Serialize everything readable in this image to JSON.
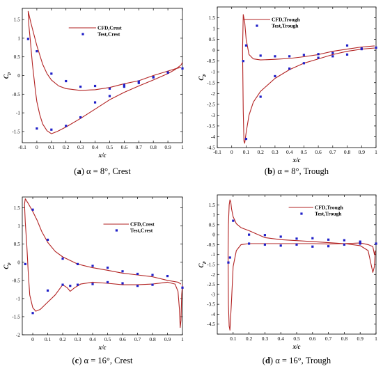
{
  "colors": {
    "cfd": "#b22222",
    "test": "#2020c8",
    "axis": "#000000"
  },
  "chart_data": [
    {
      "type": "line",
      "caption": {
        "letter": "a",
        "rest": " α = 8°, Crest"
      },
      "xlabel": "x/c",
      "ylabel": "C",
      "ylabel_sub": "p",
      "xlim": [
        -0.1,
        1.0
      ],
      "ylim": [
        -1.8,
        1.8
      ],
      "xticks": [
        -0.1,
        0,
        0.1,
        0.2,
        0.3,
        0.4,
        0.5,
        0.6,
        0.7,
        0.8,
        0.9,
        1
      ],
      "xtick_labels": [
        "-0.1",
        "0",
        "0.1",
        "0.2",
        "0.3",
        "0.4",
        "0.5",
        "0.6",
        "0.7",
        "0.8",
        "0.9",
        "1"
      ],
      "yticks": [
        -1.5,
        -1,
        -0.5,
        0,
        0.5,
        1,
        1.5
      ],
      "ytick_labels": [
        "-1.5",
        "-1",
        "-0.5",
        "0",
        "0.5",
        "1",
        "1.5"
      ],
      "legend": {
        "cfd_label": "CFD,Crest",
        "test_label": "Test,Crest",
        "position": "top-center"
      },
      "series": [
        {
          "name": "CFD,Crest",
          "kind": "line",
          "x": [
            0.99,
            0.95,
            0.9,
            0.8,
            0.7,
            0.6,
            0.5,
            0.4,
            0.3,
            0.2,
            0.15,
            0.1,
            0.07,
            0.04,
            0.02,
            0.0,
            -0.02,
            -0.04,
            -0.055,
            -0.06,
            -0.055,
            -0.045,
            -0.03,
            -0.01,
            0.0,
            0.02,
            0.04,
            0.07,
            0.1,
            0.14,
            0.2,
            0.3,
            0.4,
            0.5,
            0.6,
            0.7,
            0.8,
            0.9,
            0.95,
            0.99,
            1.0
          ],
          "y": [
            0.22,
            0.18,
            0.12,
            0.0,
            -0.14,
            -0.22,
            -0.32,
            -0.38,
            -0.4,
            -0.35,
            -0.28,
            -0.12,
            0.05,
            0.3,
            0.55,
            0.8,
            1.1,
            1.4,
            1.65,
            1.72,
            1.35,
            0.95,
            0.3,
            -0.4,
            -0.7,
            -1.05,
            -1.3,
            -1.48,
            -1.56,
            -1.5,
            -1.38,
            -1.15,
            -0.9,
            -0.65,
            -0.45,
            -0.28,
            -0.12,
            0.05,
            0.16,
            0.28,
            0.35
          ]
        },
        {
          "name": "Test,Crest",
          "kind": "scatter",
          "x": [
            -0.06,
            0.0,
            0.1,
            0.2,
            0.3,
            0.4,
            0.5,
            0.6,
            0.7,
            0.8,
            0.9,
            1.0,
            0.0,
            0.1,
            0.2,
            0.3,
            0.4,
            0.5,
            0.6,
            0.7,
            0.8,
            0.9
          ],
          "y": [
            0.98,
            0.65,
            0.05,
            -0.15,
            -0.3,
            -0.28,
            -0.35,
            -0.25,
            -0.16,
            -0.05,
            0.08,
            0.19,
            -1.42,
            -1.45,
            -1.35,
            -1.12,
            -0.72,
            -0.55,
            -0.3,
            -0.2,
            -0.04,
            0.08
          ]
        }
      ]
    },
    {
      "type": "line",
      "caption": {
        "letter": "b",
        "rest": " α = 8°, Trough"
      },
      "xlabel": "x/c",
      "ylabel": "C",
      "ylabel_sub": "p",
      "xlim": [
        -0.1,
        1.0
      ],
      "ylim": [
        -4.5,
        2.0
      ],
      "xticks": [
        -0.1,
        0,
        0.1,
        0.2,
        0.3,
        0.4,
        0.5,
        0.6,
        0.7,
        0.8,
        0.9,
        1
      ],
      "xtick_labels": [
        "-0.1",
        "0",
        "0.1",
        "0.2",
        "0.3",
        "0.4",
        "0.5",
        "0.6",
        "0.7",
        "0.8",
        "0.9",
        "1"
      ],
      "yticks": [
        -4.5,
        -4,
        -3.5,
        -3,
        -2.5,
        -2,
        -1.5,
        -1,
        -0.5,
        0,
        0.5,
        1,
        1.5
      ],
      "ytick_labels": [
        "-4.5",
        "-4",
        "-3.5",
        "-3",
        "-2.5",
        "-2",
        "-1.5",
        "-1",
        "-0.5",
        "0",
        "0.5",
        "1",
        "1.5"
      ],
      "legend": {
        "cfd_label": "CFD,Trough",
        "test_label": "Test,Trough",
        "position": "top-right"
      },
      "series": [
        {
          "name": "CFD,Trough",
          "kind": "line",
          "x": [
            0.99,
            0.9,
            0.8,
            0.7,
            0.6,
            0.5,
            0.4,
            0.3,
            0.2,
            0.15,
            0.12,
            0.1,
            0.09,
            0.08,
            0.075,
            0.08,
            0.085,
            0.09,
            0.1,
            0.12,
            0.15,
            0.2,
            0.3,
            0.4,
            0.5,
            0.6,
            0.7,
            0.8,
            0.9,
            0.99
          ],
          "y": [
            0.2,
            0.15,
            0.05,
            -0.05,
            -0.2,
            -0.3,
            -0.38,
            -0.42,
            -0.45,
            -0.4,
            -0.2,
            0.5,
            1.3,
            1.65,
            0.0,
            -2.8,
            -4.2,
            -4.3,
            -3.8,
            -3.0,
            -2.4,
            -1.9,
            -1.3,
            -0.9,
            -0.6,
            -0.4,
            -0.2,
            -0.05,
            0.05,
            0.1
          ]
        },
        {
          "name": "Test,Trough",
          "kind": "scatter",
          "x": [
            0.08,
            0.1,
            0.2,
            0.3,
            0.4,
            0.5,
            0.6,
            0.7,
            0.8,
            0.9,
            1.0,
            0.1,
            0.2,
            0.3,
            0.4,
            0.5,
            0.6,
            0.7,
            0.8,
            0.9
          ],
          "y": [
            -0.5,
            0.22,
            -0.25,
            -0.28,
            -0.28,
            -0.22,
            -0.18,
            -0.13,
            0.22,
            0.08,
            0.12,
            -4.1,
            -2.15,
            -1.2,
            -0.85,
            -0.6,
            -0.35,
            -0.28,
            -0.2,
            0.05
          ]
        }
      ]
    },
    {
      "type": "line",
      "caption": {
        "letter": "c",
        "rest": " α = 16°, Crest"
      },
      "xlabel": "x/c",
      "ylabel": "C",
      "ylabel_sub": "p",
      "xlim": [
        -0.07,
        1.0
      ],
      "ylim": [
        -2.0,
        1.8
      ],
      "xticks": [
        0,
        0.1,
        0.2,
        0.3,
        0.4,
        0.5,
        0.6,
        0.7,
        0.8,
        0.9,
        1
      ],
      "xtick_labels": [
        "0",
        "0.1",
        "0.2",
        "0.3",
        "0.4",
        "0.5",
        "0.6",
        "0.7",
        "0.8",
        "0.9",
        "1"
      ],
      "yticks": [
        -2,
        -1.5,
        -1,
        -0.5,
        0,
        0.5,
        1,
        1.5
      ],
      "ytick_labels": [
        "-2",
        "-1.5",
        "-1",
        "-0.5",
        "0",
        "0.5",
        "1",
        "1.5"
      ],
      "legend": {
        "cfd_label": "CFD,Crest",
        "test_label": "Test,Crest",
        "position": "right"
      },
      "series": [
        {
          "name": "CFD,Crest",
          "kind": "line",
          "x": [
            0.99,
            0.97,
            0.9,
            0.8,
            0.7,
            0.6,
            0.5,
            0.4,
            0.3,
            0.2,
            0.15,
            0.1,
            0.06,
            0.03,
            0.0,
            -0.03,
            -0.05,
            -0.055,
            -0.05,
            -0.04,
            -0.03,
            -0.02,
            0.0,
            0.02,
            0.05,
            0.1,
            0.15,
            0.2,
            0.23,
            0.25,
            0.28,
            0.32,
            0.4,
            0.5,
            0.6,
            0.7,
            0.8,
            0.9,
            0.95,
            0.97,
            0.98,
            0.985,
            0.99,
            0.995,
            1.0
          ],
          "y": [
            -0.6,
            -0.55,
            -0.5,
            -0.4,
            -0.35,
            -0.3,
            -0.22,
            -0.15,
            -0.05,
            0.15,
            0.3,
            0.55,
            0.85,
            1.15,
            1.4,
            1.62,
            1.75,
            1.6,
            1.1,
            0.5,
            -0.3,
            -0.9,
            -1.25,
            -1.35,
            -1.3,
            -1.1,
            -0.9,
            -0.62,
            -0.7,
            -0.8,
            -0.7,
            -0.6,
            -0.55,
            -0.58,
            -0.62,
            -0.62,
            -0.6,
            -0.55,
            -0.6,
            -0.8,
            -1.3,
            -1.8,
            -1.6,
            -0.9,
            -0.62
          ]
        },
        {
          "name": "Test,Crest",
          "kind": "scatter",
          "x": [
            0.0,
            0.1,
            0.2,
            0.3,
            0.4,
            0.5,
            0.6,
            0.7,
            0.8,
            0.9,
            1.0,
            -0.05,
            0.0,
            0.1,
            0.2,
            0.25,
            0.3,
            0.4,
            0.5,
            0.6,
            0.7,
            0.8
          ],
          "y": [
            1.45,
            0.62,
            0.1,
            -0.05,
            -0.1,
            -0.15,
            -0.25,
            -0.32,
            -0.35,
            -0.38,
            -0.7,
            -0.05,
            -1.4,
            -0.78,
            -0.62,
            -0.65,
            -0.62,
            -0.6,
            -0.55,
            -0.58,
            -0.65,
            -0.62
          ]
        }
      ]
    },
    {
      "type": "line",
      "caption": {
        "letter": "d",
        "rest": " α = 16°, Trough"
      },
      "xlabel": "x/c",
      "ylabel": "C",
      "ylabel_sub": "p",
      "xlim": [
        0.0,
        1.0
      ],
      "ylim": [
        -5.0,
        2.0
      ],
      "xticks": [
        0.1,
        0.2,
        0.3,
        0.4,
        0.5,
        0.6,
        0.7,
        0.8,
        0.9,
        1
      ],
      "xtick_labels": [
        "0.1",
        "0.2",
        "0.3",
        "0.4",
        "0.5",
        "0.6",
        "0.7",
        "0.8",
        "0.9",
        "1"
      ],
      "yticks": [
        -5,
        -4.5,
        -4,
        -3.5,
        -3,
        -2.5,
        -2,
        -1.5,
        -1,
        -0.5,
        0,
        0.5,
        1,
        1.5
      ],
      "ytick_labels": [
        "",
        "-4.5",
        "-4",
        "-3.5",
        "-3",
        "-2.5",
        "-2",
        "-1.5",
        "-1",
        "-0.5",
        "0",
        "0.5",
        "1",
        "1.5"
      ],
      "legend": {
        "cfd_label": "CFD,Trough",
        "test_label": "Test,Trough",
        "position": "top-right"
      },
      "series": [
        {
          "name": "CFD,Trough",
          "kind": "line",
          "x": [
            0.995,
            0.99,
            0.98,
            0.95,
            0.9,
            0.8,
            0.7,
            0.6,
            0.5,
            0.4,
            0.3,
            0.2,
            0.15,
            0.12,
            0.1,
            0.09,
            0.085,
            0.08,
            0.075,
            0.07,
            0.068,
            0.07,
            0.075,
            0.08,
            0.09,
            0.1,
            0.12,
            0.15,
            0.2,
            0.3,
            0.4,
            0.5,
            0.6,
            0.7,
            0.8,
            0.9,
            0.95,
            0.98,
            0.99,
            0.995
          ],
          "y": [
            -0.8,
            -1.6,
            -1.9,
            -0.8,
            -0.55,
            -0.45,
            -0.4,
            -0.35,
            -0.3,
            -0.25,
            -0.15,
            0.2,
            0.35,
            0.55,
            0.9,
            1.3,
            1.65,
            1.75,
            1.5,
            0.5,
            -1.0,
            -3.5,
            -4.6,
            -4.8,
            -3.3,
            -1.6,
            -0.8,
            -0.5,
            -0.45,
            -0.45,
            -0.45,
            -0.45,
            -0.45,
            -0.47,
            -0.45,
            -0.42,
            -0.5,
            -0.6,
            -1.0,
            -0.8
          ]
        },
        {
          "name": "Test,Trough",
          "kind": "scatter",
          "x": [
            0.07,
            0.08,
            0.1,
            0.2,
            0.3,
            0.4,
            0.5,
            0.6,
            0.7,
            0.8,
            0.9,
            1.0,
            0.2,
            0.3,
            0.4,
            0.5,
            0.6,
            0.7,
            0.8,
            0.9
          ],
          "y": [
            -1.4,
            -1.15,
            0.7,
            0.0,
            -0.02,
            -0.1,
            -0.2,
            -0.18,
            -0.25,
            -0.28,
            -0.35,
            -0.45,
            -0.45,
            -0.5,
            -0.55,
            -0.5,
            -0.6,
            -0.58,
            -0.5,
            -0.45
          ]
        }
      ]
    }
  ]
}
